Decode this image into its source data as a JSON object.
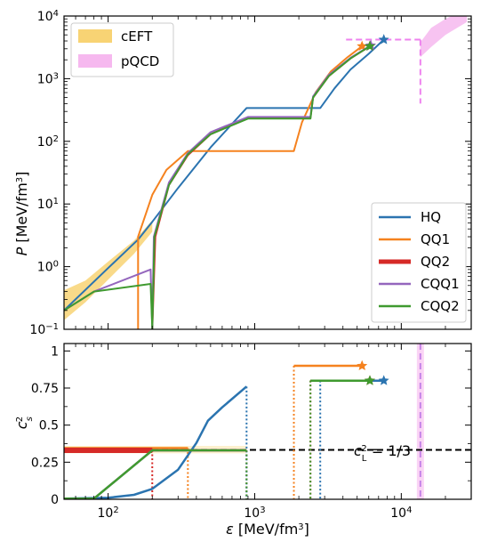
{
  "chart_data": [
    {
      "type": "line",
      "xscale": "log",
      "yscale": "log",
      "xlim": [
        50,
        30000
      ],
      "ylim": [
        0.1,
        10000
      ],
      "ylabel_html": "P [MeV/fm³]",
      "ylabel_parts": [
        "P",
        " [MeV/fm",
        "3",
        "]"
      ],
      "yticks": [
        {
          "value": 0.1,
          "base": "10",
          "exp": "−1"
        },
        {
          "value": 1,
          "base": "10",
          "exp": "0"
        },
        {
          "value": 10,
          "base": "10",
          "exp": "1"
        },
        {
          "value": 100,
          "base": "10",
          "exp": "2"
        },
        {
          "value": 1000,
          "base": "10",
          "exp": "3"
        },
        {
          "value": 10000,
          "base": "10",
          "exp": "4"
        }
      ],
      "legend_top_left": [
        {
          "label": "cEFT",
          "color": "#f8d374"
        },
        {
          "label": "pQCD",
          "color": "#f6b8ef"
        }
      ],
      "legend_bottom_right": [
        {
          "label": "HQ",
          "color": "#2b74b0"
        },
        {
          "label": "QQ1",
          "color": "#f5821f"
        },
        {
          "label": "QQ2",
          "color": "#d62a27"
        },
        {
          "label": "CQQ1",
          "color": "#9466bd"
        },
        {
          "label": "CQQ2",
          "color": "#3f9a2f"
        }
      ],
      "bands": [
        {
          "name": "cEFT",
          "color": "#f8d374",
          "upper": [
            [
              50,
              0.42
            ],
            [
              70,
              0.6
            ],
            [
              100,
              1.2
            ],
            [
              150,
              2.6
            ],
            [
              200,
              5.5
            ]
          ],
          "lower": [
            [
              200,
              3.6
            ],
            [
              150,
              1.6
            ],
            [
              100,
              0.62
            ],
            [
              70,
              0.27
            ],
            [
              50,
              0.14
            ]
          ]
        },
        {
          "name": "pQCD",
          "color": "#f6b8ef",
          "upper": [
            [
              13500,
              3800
            ],
            [
              16000,
              6500
            ],
            [
              20000,
              9000
            ],
            [
              28000,
              13000
            ]
          ],
          "lower": [
            [
              28000,
              8000
            ],
            [
              20000,
              5000
            ],
            [
              16000,
              3200
            ],
            [
              13500,
              2200
            ]
          ]
        }
      ],
      "pqcd_dashes": {
        "horizontal": {
          "x": [
            4200,
            13500
          ],
          "y": 4200
        },
        "vertical": {
          "x": 13500,
          "y": [
            4200,
            400
          ]
        }
      },
      "series": [
        {
          "name": "HQ",
          "color": "#2b74b0",
          "width": 2,
          "points": [
            [
              50,
              0.2
            ],
            [
              100,
              0.95
            ],
            [
              160,
              2.7
            ],
            [
              200,
              5.2
            ],
            [
              300,
              18
            ],
            [
              500,
              80
            ],
            [
              880,
              340
            ],
            [
              2800,
              340
            ],
            [
              3500,
              700
            ],
            [
              4500,
              1400
            ],
            [
              6000,
              2500
            ],
            [
              7600,
              4200
            ]
          ],
          "end_marker": [
            7600,
            4200
          ]
        },
        {
          "name": "QQ1",
          "color": "#f5821f",
          "width": 2,
          "points": [
            [
              160,
              0.1
            ],
            [
              160,
              3.0
            ],
            [
              200,
              14
            ],
            [
              250,
              35
            ],
            [
              350,
              70
            ],
            [
              1850,
              70
            ],
            [
              2100,
              200
            ],
            [
              2600,
              600
            ],
            [
              3300,
              1300
            ],
            [
              4300,
              2200
            ],
            [
              5400,
              3300
            ]
          ],
          "end_marker": [
            5400,
            3300
          ]
        },
        {
          "name": "QQ2",
          "color": "#d62a27",
          "width": 2,
          "points": [
            [
              200,
              0.1
            ],
            [
              210,
              3.0
            ],
            [
              260,
              20
            ],
            [
              350,
              60
            ],
            [
              500,
              130
            ],
            [
              900,
              240
            ],
            [
              2400,
              240
            ],
            [
              2500,
              500
            ],
            [
              3200,
              1100
            ],
            [
              4500,
              2100
            ],
            [
              6100,
              3300
            ]
          ],
          "end_marker": [
            6100,
            3300
          ]
        },
        {
          "name": "CQQ1",
          "color": "#9466bd",
          "width": 2,
          "points": [
            [
              50,
              0.2
            ],
            [
              80,
              0.4
            ],
            [
              195,
              0.9
            ],
            [
              200,
              0.1
            ],
            [
              205,
              3.0
            ],
            [
              260,
              22
            ],
            [
              350,
              65
            ],
            [
              500,
              140
            ],
            [
              900,
              245
            ],
            [
              2400,
              245
            ],
            [
              2500,
              520
            ],
            [
              3200,
              1150
            ],
            [
              4500,
              2150
            ],
            [
              6200,
              3400
            ]
          ],
          "end_marker": [
            6200,
            3400
          ]
        },
        {
          "name": "CQQ2",
          "color": "#3f9a2f",
          "width": 2,
          "points": [
            [
              50,
              0.2
            ],
            [
              80,
              0.4
            ],
            [
              195,
              0.53
            ],
            [
              200,
              0.1
            ],
            [
              207,
              3.0
            ],
            [
              260,
              20
            ],
            [
              350,
              62
            ],
            [
              500,
              130
            ],
            [
              900,
              230
            ],
            [
              2400,
              230
            ],
            [
              2500,
              500
            ],
            [
              3200,
              1100
            ],
            [
              4500,
              2100
            ],
            [
              6100,
              3300
            ]
          ],
          "end_marker": [
            6100,
            3300
          ]
        }
      ]
    },
    {
      "type": "line",
      "xscale": "log",
      "yscale": "linear",
      "xlim": [
        50,
        30000
      ],
      "ylim": [
        0,
        1.05
      ],
      "xlabel_parts": [
        "ε",
        " [MeV/fm",
        "3",
        "]"
      ],
      "ylabel_parts": [
        "c",
        "s",
        "2"
      ],
      "xticks": [
        {
          "value": 100,
          "base": "10",
          "exp": "2"
        },
        {
          "value": 1000,
          "base": "10",
          "exp": "3"
        },
        {
          "value": 10000,
          "base": "10",
          "exp": "4"
        }
      ],
      "yticks": [
        {
          "value": 0,
          "label": "0"
        },
        {
          "value": 0.25,
          "label": "0.25"
        },
        {
          "value": 0.5,
          "label": "0.5"
        },
        {
          "value": 0.75,
          "label": "0.75"
        },
        {
          "value": 1,
          "label": "1"
        }
      ],
      "annotation_parts": [
        "c",
        "L",
        "2",
        " = 1/3"
      ],
      "conformal_limit": 0.3333,
      "pqcd_vline": 13500,
      "series": [
        {
          "name": "HQ",
          "color": "#2b74b0",
          "points": [
            [
              50,
              0.005
            ],
            [
              100,
              0.01
            ],
            [
              150,
              0.03
            ],
            [
              200,
              0.07
            ],
            [
              300,
              0.2
            ],
            [
              400,
              0.38
            ],
            [
              480,
              0.53
            ],
            [
              600,
              0.62
            ],
            [
              880,
              0.76
            ]
          ],
          "dotted_x": 880
        },
        {
          "name": "HQ-2",
          "color": "#2b74b0",
          "points": [
            [
              2800,
              0.8
            ],
            [
              7600,
              0.8
            ]
          ],
          "dotted_x": 2800,
          "end_marker": [
            7600,
            0.8
          ]
        },
        {
          "name": "QQ1",
          "color": "#f5821f",
          "points": [
            [
              50,
              0.345
            ],
            [
              350,
              0.345
            ]
          ],
          "dotted_x": 350
        },
        {
          "name": "QQ1-2",
          "color": "#f5821f",
          "points": [
            [
              1850,
              0.9
            ],
            [
              5400,
              0.9
            ]
          ],
          "dotted_x": 1850,
          "end_marker": [
            5400,
            0.9
          ]
        },
        {
          "name": "QQ2",
          "color": "#d62a27",
          "width": 6,
          "points": [
            [
              50,
              0.33
            ],
            [
              200,
              0.33
            ]
          ],
          "dotted_x": 200
        },
        {
          "name": "QQ2-2",
          "color": "#d62a27",
          "points": [
            [
              200,
              0.33
            ],
            [
              880,
              0.33
            ]
          ],
          "dotted_x": 880
        },
        {
          "name": "CQQ1",
          "color": "#9466bd",
          "points": [
            [
              50,
              0.005
            ],
            [
              80,
              0.005
            ],
            [
              200,
              0.33
            ],
            [
              880,
              0.33
            ]
          ],
          "dotted_x": 880
        },
        {
          "name": "CQQ2",
          "color": "#3f9a2f",
          "points": [
            [
              50,
              0.005
            ],
            [
              80,
              0.005
            ],
            [
              200,
              0.33
            ],
            [
              880,
              0.33
            ]
          ],
          "dotted_x": 880
        },
        {
          "name": "QQ2-3",
          "color": "#d62a27",
          "points": [
            [
              2400,
              0.8
            ],
            [
              6100,
              0.8
            ]
          ],
          "dotted_x": 2400,
          "end_marker": [
            6100,
            0.8
          ]
        },
        {
          "name": "CQQ2-3",
          "color": "#3f9a2f",
          "points": [
            [
              2400,
              0.8
            ],
            [
              6100,
              0.8
            ]
          ],
          "dotted_x": 2400,
          "end_marker": [
            6100,
            0.8
          ]
        }
      ]
    }
  ]
}
